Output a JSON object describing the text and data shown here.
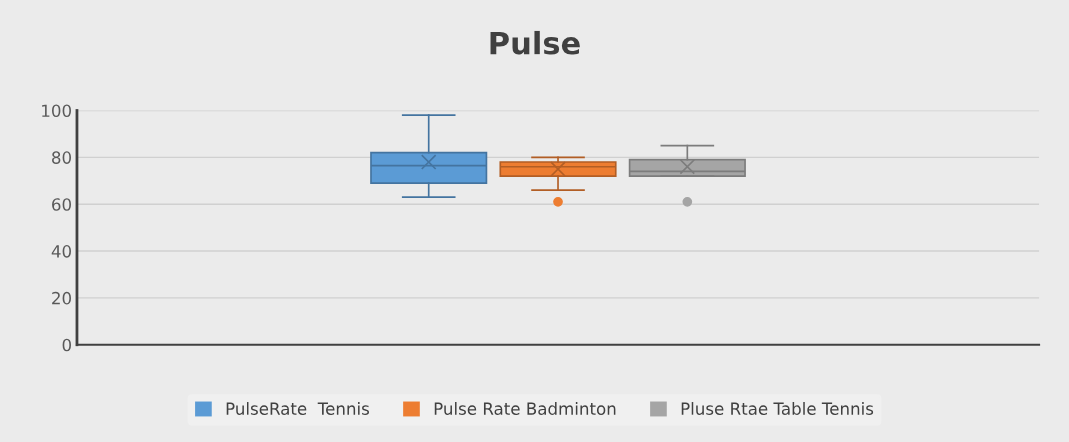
{
  "chart_data": {
    "type": "box",
    "title": "Pulse",
    "categories": [
      null
    ],
    "series": [
      {
        "name": "PulseRate  Tennis",
        "color": "#5b9bd5",
        "boxes": [
          {
            "low": 63,
            "q1": 69,
            "median": 76.5,
            "q3": 82,
            "high": 98,
            "mean": 78
          }
        ]
      },
      {
        "name": "Pulse Rate Badminton",
        "color": "#ed7d31",
        "boxes": [
          {
            "low": 66,
            "q1": 72,
            "median": 76,
            "q3": 78,
            "high": 80,
            "mean": 75,
            "outliers": [
              61
            ]
          }
        ]
      },
      {
        "name": "Pluse Rtae Table Tennis",
        "color": "#a5a5a5",
        "boxes": [
          {
            "low": 72,
            "q1": 72,
            "median": 74,
            "q3": 79,
            "high": 85,
            "mean": 76,
            "outliers": [
              61
            ]
          }
        ]
      }
    ],
    "ylim": [
      0,
      100
    ],
    "yticks": [
      0,
      20,
      40,
      60,
      80,
      100
    ],
    "grid": "y",
    "legend": "bottom"
  }
}
